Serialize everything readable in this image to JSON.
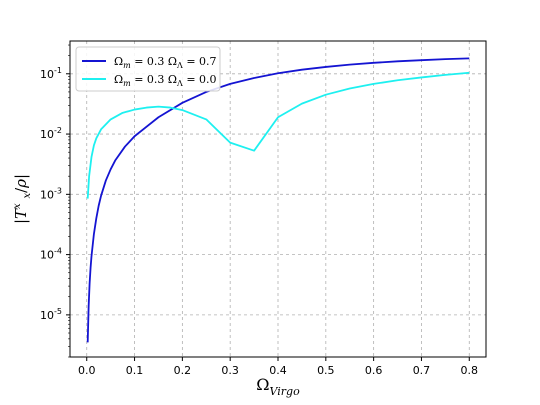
{
  "chart_data": {
    "type": "line",
    "title": "",
    "xlabel": "Ω_Virgo",
    "ylabel": "|T^x_x / ρ|",
    "xlim": [
      -0.035,
      0.835
    ],
    "ylim": [
      2e-06,
      0.35
    ],
    "yscale": "log",
    "xticks": [
      0.0,
      0.1,
      0.2,
      0.3,
      0.4,
      0.5,
      0.6,
      0.7,
      0.8
    ],
    "xtick_labels": [
      "0.0",
      "0.1",
      "0.2",
      "0.3",
      "0.4",
      "0.5",
      "0.6",
      "0.7",
      "0.8"
    ],
    "yticks": [
      1e-05,
      0.0001,
      0.001,
      0.01,
      0.1
    ],
    "ytick_labels": [
      {
        "base": "10",
        "exp": "-5"
      },
      {
        "base": "10",
        "exp": "-4"
      },
      {
        "base": "10",
        "exp": "-3"
      },
      {
        "base": "10",
        "exp": "-2"
      },
      {
        "base": "10",
        "exp": "-1"
      }
    ],
    "grid": true,
    "legend_position": "top-left",
    "series": [
      {
        "name": "Ω_m = 0.3  Ω_Λ = 0.7",
        "legend": {
          "a_sym": "Ω",
          "a_sub": "m",
          "a_val": " = 0.3 ",
          "b_sym": "Ω",
          "b_sub": "Λ",
          "b_val": " = 0.7"
        },
        "color": "#1414d2",
        "x": [
          0.002,
          0.004,
          0.006,
          0.008,
          0.01,
          0.015,
          0.02,
          0.025,
          0.03,
          0.04,
          0.05,
          0.06,
          0.08,
          0.1,
          0.15,
          0.2,
          0.25,
          0.3,
          0.35,
          0.4,
          0.45,
          0.5,
          0.55,
          0.6,
          0.65,
          0.7,
          0.75,
          0.8
        ],
        "y": [
          3.5e-06,
          1.4e-05,
          3.3e-05,
          6e-05,
          9.5e-05,
          0.00022,
          0.0004,
          0.00065,
          0.00095,
          0.0017,
          0.0026,
          0.0037,
          0.0062,
          0.0092,
          0.019,
          0.033,
          0.05,
          0.068,
          0.085,
          0.102,
          0.117,
          0.13,
          0.142,
          0.152,
          0.161,
          0.168,
          0.175,
          0.18
        ]
      },
      {
        "name": "Ω_m = 0.3  Ω_Λ = 0.0",
        "legend": {
          "a_sym": "Ω",
          "a_sub": "m",
          "a_val": " = 0.3 ",
          "b_sym": "Ω",
          "b_sub": "Λ",
          "b_val": " = 0.0"
        },
        "color": "#1ef0f0",
        "x": [
          0.002,
          0.005,
          0.01,
          0.015,
          0.02,
          0.03,
          0.05,
          0.075,
          0.1,
          0.125,
          0.15,
          0.175,
          0.2,
          0.25,
          0.3,
          0.35,
          0.4,
          0.45,
          0.5,
          0.55,
          0.6,
          0.65,
          0.7,
          0.75,
          0.8
        ],
        "y": [
          0.00085,
          0.002,
          0.0042,
          0.0065,
          0.0085,
          0.012,
          0.0175,
          0.0225,
          0.0255,
          0.0275,
          0.0285,
          0.0275,
          0.025,
          0.0175,
          0.0072,
          0.0053,
          0.019,
          0.032,
          0.045,
          0.057,
          0.068,
          0.078,
          0.087,
          0.096,
          0.104
        ]
      }
    ]
  }
}
